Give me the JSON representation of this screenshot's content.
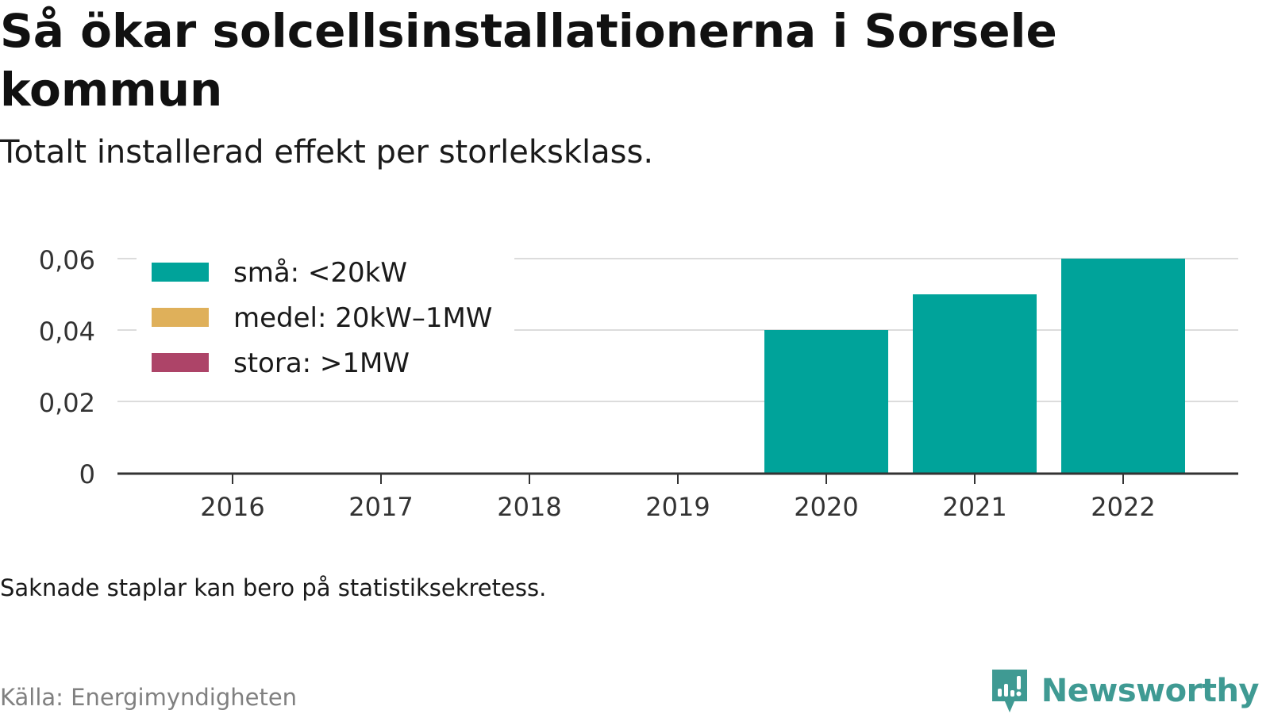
{
  "header": {
    "title": "Så ökar solcellsinstallationerna i Sorsele kommun",
    "subtitle": "Totalt installerad effekt per storleksklass."
  },
  "footer": {
    "note": "Saknade staplar kan bero på statistiksekretess.",
    "source": "Källa: Energimyndigheten",
    "brand": "Newsworthy",
    "brand_icon": "bar-chart-speech-bubble-icon",
    "brand_color": "#3f9a93"
  },
  "chart_data": {
    "type": "bar",
    "stacked": true,
    "categories": [
      "2016",
      "2017",
      "2018",
      "2019",
      "2020",
      "2021",
      "2022"
    ],
    "series": [
      {
        "name": "små: <20kW",
        "color": "#00a39a",
        "values": [
          null,
          null,
          null,
          null,
          0.04,
          0.05,
          0.06
        ]
      },
      {
        "name": "medel: 20kW–1MW",
        "color": "#dfb05a",
        "values": [
          null,
          null,
          null,
          null,
          null,
          null,
          null
        ]
      },
      {
        "name": "stora: >1MW",
        "color": "#ad4468",
        "values": [
          null,
          null,
          null,
          null,
          null,
          null,
          null
        ]
      }
    ],
    "ylim": [
      0,
      0.06
    ],
    "yticks": [
      0,
      0.02,
      0.04,
      0.06
    ],
    "ytick_labels": [
      "0",
      "0,02",
      "0,04",
      "0,06"
    ],
    "xlabel": "",
    "ylabel": "",
    "grid": true,
    "legend_position": "top-left"
  }
}
